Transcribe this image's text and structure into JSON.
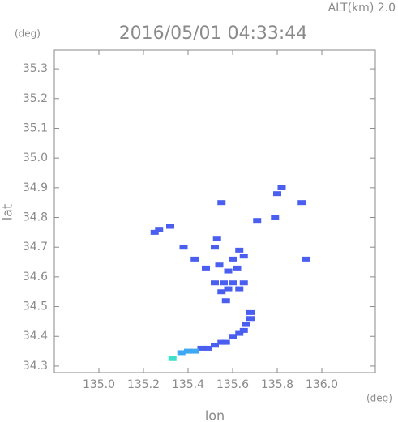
{
  "chart_data": {
    "type": "scatter",
    "title": "2016/05/01 04:33:44",
    "altitude_label": "ALT(km) 2.0",
    "y_unit": "(deg)",
    "x_unit": "(deg)",
    "xlabel": "lon",
    "ylabel": "lat",
    "xlim": [
      134.8,
      136.24
    ],
    "ylim": [
      34.278,
      35.363
    ],
    "xticks": [
      {
        "value": 135.0,
        "label": "135.0"
      },
      135.2,
      135.4,
      135.6,
      135.8,
      {
        "value": 136.0,
        "label": "136.0"
      }
    ],
    "yticks": [
      34.3,
      34.4,
      34.5,
      34.6,
      34.7,
      34.8,
      34.9,
      {
        "value": 35.0,
        "label": "35.0"
      },
      35.1,
      35.2,
      35.3
    ],
    "series": [
      {
        "color": "#4a5ef0",
        "x": [
          135.27,
          135.32,
          135.25,
          135.38,
          135.53,
          135.52,
          135.55,
          135.43,
          135.48,
          135.54,
          135.58,
          135.63,
          135.65,
          135.6,
          135.56,
          135.6,
          135.65,
          135.62,
          135.55,
          135.58,
          135.63,
          135.57,
          135.52,
          135.68,
          135.68,
          135.66,
          135.65,
          135.63,
          135.6,
          135.57,
          135.55,
          135.52,
          135.49,
          135.46,
          135.8,
          135.82,
          135.91,
          135.79,
          135.93,
          135.71
        ],
        "values": [
          34.76,
          34.77,
          34.75,
          34.7,
          34.73,
          34.7,
          34.85,
          34.66,
          34.63,
          34.64,
          34.62,
          34.69,
          34.67,
          34.66,
          34.58,
          34.58,
          34.58,
          34.63,
          34.55,
          34.56,
          34.56,
          34.52,
          34.58,
          34.48,
          34.46,
          34.44,
          34.42,
          34.41,
          34.4,
          34.38,
          34.38,
          34.37,
          34.36,
          34.36,
          34.88,
          34.9,
          34.85,
          34.8,
          34.66,
          34.79
        ]
      },
      {
        "color": "#3fa8f2",
        "x": [
          135.43,
          135.4,
          135.37
        ],
        "values": [
          34.35,
          34.35,
          34.345
        ]
      },
      {
        "color": "#3ee0cc",
        "x": [
          135.33
        ],
        "values": [
          34.325
        ]
      }
    ]
  }
}
